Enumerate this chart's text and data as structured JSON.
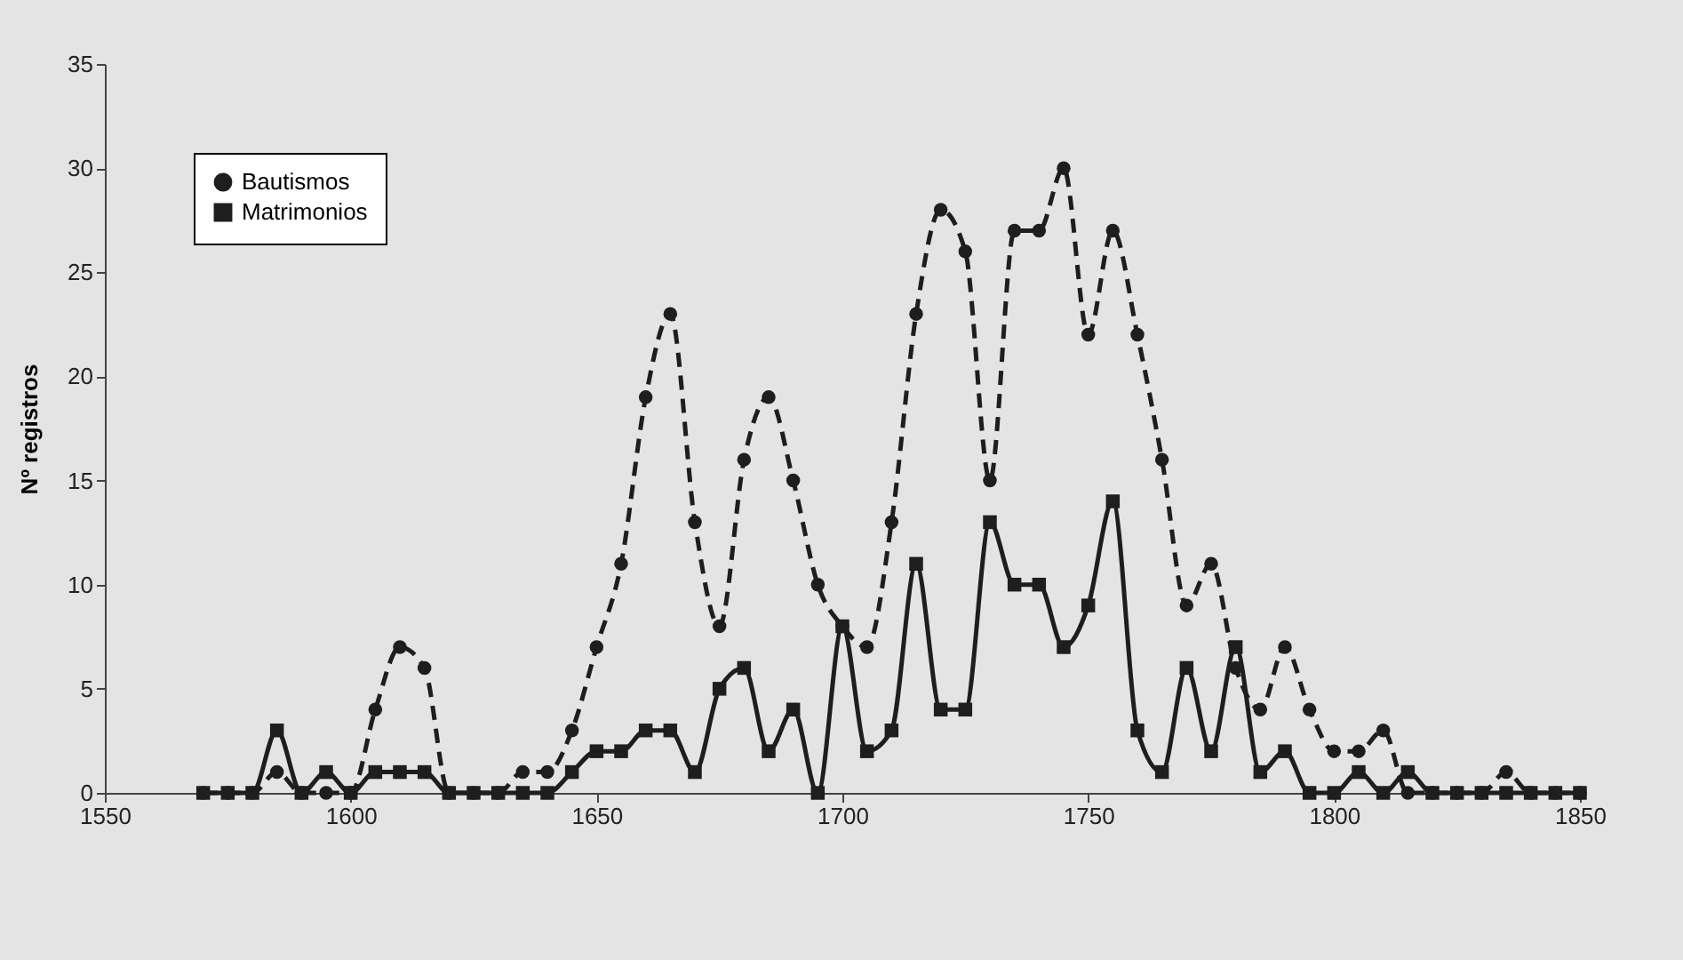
{
  "chart_data": {
    "type": "line",
    "ylabel": "Nº registros",
    "x": [
      1570,
      1575,
      1580,
      1585,
      1590,
      1595,
      1600,
      1605,
      1610,
      1615,
      1620,
      1625,
      1630,
      1635,
      1640,
      1645,
      1650,
      1655,
      1660,
      1665,
      1670,
      1675,
      1680,
      1685,
      1690,
      1695,
      1700,
      1705,
      1710,
      1715,
      1720,
      1725,
      1730,
      1735,
      1740,
      1745,
      1750,
      1755,
      1760,
      1765,
      1770,
      1775,
      1780,
      1785,
      1790,
      1795,
      1800,
      1805,
      1810,
      1815,
      1820,
      1825,
      1830,
      1835,
      1840,
      1845,
      1850
    ],
    "series": [
      {
        "name": "Bautismos",
        "color": "#1e1e1e",
        "line_style": "dashed",
        "marker": "circle",
        "values": [
          0,
          0,
          0,
          1,
          0,
          0,
          0,
          4,
          7,
          6,
          0,
          0,
          0,
          1,
          1,
          3,
          7,
          11,
          19,
          23,
          13,
          8,
          16,
          19,
          15,
          10,
          8,
          7,
          13,
          23,
          28,
          26,
          15,
          27,
          27,
          30,
          22,
          27,
          22,
          16,
          9,
          11,
          6,
          4,
          7,
          4,
          2,
          2,
          3,
          0,
          0,
          0,
          0,
          1,
          0,
          0,
          0
        ]
      },
      {
        "name": "Matrimonios",
        "color": "#1e1e1e",
        "line_style": "solid",
        "marker": "square",
        "values": [
          0,
          0,
          0,
          3,
          0,
          1,
          0,
          1,
          1,
          1,
          0,
          0,
          0,
          0,
          0,
          1,
          2,
          2,
          3,
          3,
          1,
          5,
          6,
          2,
          4,
          0,
          8,
          2,
          3,
          11,
          4,
          4,
          13,
          10,
          10,
          7,
          9,
          14,
          3,
          1,
          6,
          2,
          7,
          1,
          2,
          0,
          0,
          1,
          0,
          1,
          0,
          0,
          0,
          0,
          0,
          0,
          0
        ]
      }
    ],
    "xlim": [
      1550,
      1850
    ],
    "xticks": [
      1550,
      1600,
      1650,
      1700,
      1750,
      1800,
      1850
    ],
    "ylim": [
      0,
      35
    ],
    "yticks": [
      0,
      5,
      10,
      15,
      20,
      25,
      30,
      35
    ],
    "grid": false,
    "legend": "top left"
  }
}
